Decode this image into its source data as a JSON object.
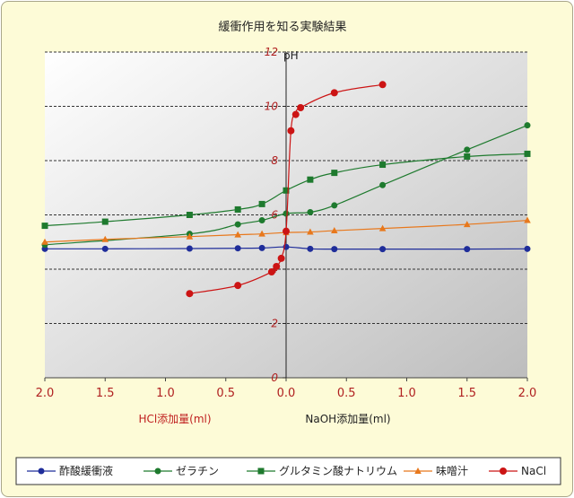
{
  "chart_data": {
    "type": "line",
    "title": "緩衝作用を知る実験結果",
    "ylabel": "pH",
    "ylim": [
      0,
      12
    ],
    "yticks": [
      "0",
      "2",
      "4",
      "6",
      "8",
      "10",
      "12"
    ],
    "xlim": [
      -2.0,
      2.0
    ],
    "xtick_labels": [
      "2.0",
      "1.5",
      "1.0",
      "0.5",
      "0.0",
      "0.5",
      "1.0",
      "1.5",
      "2.0"
    ],
    "x_note": "negative x = HCl added (ml), positive x = NaOH added (ml)",
    "xlabel_left": "HCl添加量(ml)",
    "xlabel_right": "NaOH添加量(ml)",
    "grid": "horizontal dashed",
    "legend_position": "bottom",
    "series": [
      {
        "name": "酢酸緩衝液",
        "color": "#1f2d9a",
        "marker": "circle-small",
        "x": [
          -2.0,
          -1.5,
          -0.8,
          -0.4,
          -0.2,
          0.0,
          0.2,
          0.4,
          0.8,
          1.5,
          2.0
        ],
        "y": [
          4.75,
          4.75,
          4.76,
          4.77,
          4.78,
          4.82,
          4.75,
          4.74,
          4.74,
          4.74,
          4.75
        ]
      },
      {
        "name": "ゼラチン",
        "color": "#1e7a2e",
        "marker": "circle-small",
        "x": [
          -2.0,
          -0.8,
          -0.4,
          -0.2,
          0.0,
          0.2,
          0.4,
          0.8,
          1.5,
          2.0
        ],
        "y": [
          4.9,
          5.3,
          5.65,
          5.8,
          6.05,
          6.1,
          6.35,
          7.1,
          8.4,
          9.3
        ]
      },
      {
        "name": "グルタミン酸ナトリウム",
        "color": "#1e7a2e",
        "marker": "square",
        "x": [
          -2.0,
          -1.5,
          -0.8,
          -0.4,
          -0.2,
          0.0,
          0.2,
          0.4,
          0.8,
          1.5,
          2.0
        ],
        "y": [
          5.6,
          5.75,
          6.0,
          6.2,
          6.4,
          6.9,
          7.3,
          7.55,
          7.85,
          8.15,
          8.25
        ]
      },
      {
        "name": "味噌汁",
        "color": "#e8781c",
        "marker": "triangle",
        "x": [
          -2.0,
          -1.5,
          -0.8,
          -0.4,
          -0.2,
          0.0,
          0.2,
          0.4,
          0.8,
          1.5,
          2.0
        ],
        "y": [
          5.0,
          5.1,
          5.2,
          5.27,
          5.3,
          5.35,
          5.37,
          5.42,
          5.5,
          5.65,
          5.8
        ]
      },
      {
        "name": "NaCl",
        "color": "#cc1414",
        "marker": "circle-large",
        "x": [
          -0.8,
          -0.4,
          -0.12,
          -0.08,
          -0.04,
          0.0,
          0.04,
          0.08,
          0.12,
          0.4,
          0.8
        ],
        "y": [
          3.1,
          3.4,
          3.9,
          4.1,
          4.4,
          5.4,
          9.1,
          9.7,
          9.95,
          10.5,
          10.8
        ]
      }
    ]
  }
}
